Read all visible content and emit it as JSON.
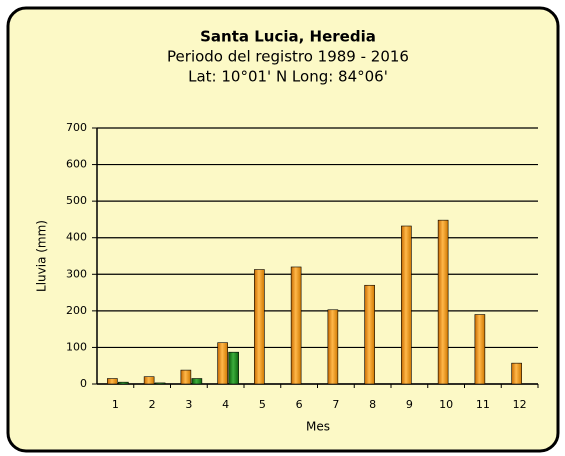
{
  "chart_data": {
    "type": "bar",
    "title": "Santa Lucia, Heredia",
    "subtitle": "Periodo del registro 1989 - 2016",
    "subtitle2": "Lat: 10°01' N Long: 84°06'",
    "ylabel": "Lluvia (mm)",
    "xlabel": "Mes",
    "categories": [
      "1",
      "2",
      "3",
      "4",
      "5",
      "6",
      "7",
      "8",
      "9",
      "10",
      "11",
      "12"
    ],
    "series": [
      {
        "color": "#f59b1a",
        "values": [
          15,
          20,
          38,
          113,
          313,
          320,
          203,
          270,
          432,
          448,
          190,
          57
        ]
      },
      {
        "color": "#1f8a1f",
        "values": [
          5,
          3,
          15,
          87,
          0,
          0,
          0,
          0,
          0,
          0,
          0,
          0
        ]
      }
    ],
    "ylim": [
      0,
      700
    ],
    "yticks": [
      0,
      100,
      200,
      300,
      400,
      500,
      600,
      700
    ],
    "grid": true
  }
}
